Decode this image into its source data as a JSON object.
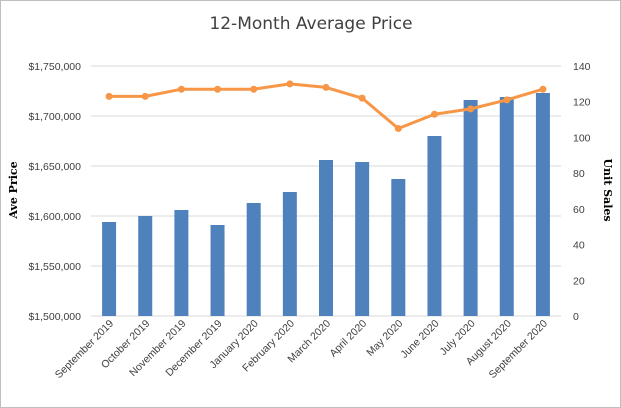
{
  "chart_data": {
    "type": "bar",
    "title": "12-Month Average Price",
    "ylabel": "Ave Price",
    "y2label": "Unit Sales",
    "categories": [
      "September 2019",
      "October 2019",
      "November 2019",
      "December 2019",
      "January 2020",
      "February 2020",
      "March 2020",
      "April 2020",
      "May 2020",
      "June 2020",
      "July 2020",
      "August 2020",
      "September 2020"
    ],
    "series": [
      {
        "type": "bar",
        "axis": "left",
        "color": "#4f81bd",
        "values": [
          1594000,
          1600000,
          1606000,
          1591000,
          1613000,
          1624000,
          1656000,
          1654000,
          1637000,
          1680000,
          1716000,
          1719000,
          1723000
        ]
      },
      {
        "type": "line",
        "axis": "right",
        "color": "#f79646",
        "values": [
          123,
          123,
          127,
          127,
          127,
          130,
          128,
          122,
          105,
          113,
          116,
          121,
          127
        ]
      }
    ],
    "ylim": [
      1500000,
      1750000
    ],
    "y_ticks": [
      1500000,
      1550000,
      1600000,
      1650000,
      1700000,
      1750000
    ],
    "y_tick_labels": [
      "$1,500,000",
      "$1,550,000",
      "$1,600,000",
      "$1,650,000",
      "$1,700,000",
      "$1,750,000"
    ],
    "y2lim": [
      0,
      140
    ],
    "y2_ticks": [
      0,
      20,
      40,
      60,
      80,
      100,
      120,
      140
    ],
    "grid": true,
    "legend": "none"
  }
}
